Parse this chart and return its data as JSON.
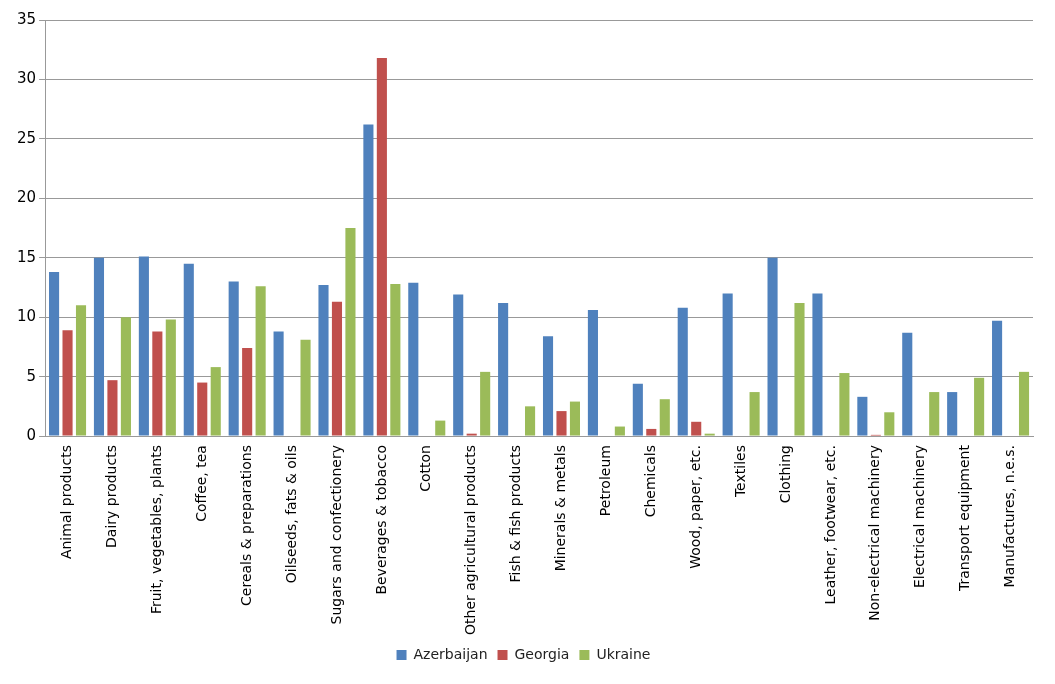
{
  "chart_data": {
    "type": "bar",
    "categories": [
      "Animal products",
      "Dairy products",
      "Fruit, vegetables, plants",
      "Coffee, tea",
      "Cereals & preparations",
      "Oilseeds, fats & oils",
      "Sugars and confectionery",
      "Beverages & tobacco",
      "Cotton",
      "Other agricultural products",
      "Fish & fish products",
      "Minerals & metals",
      "Petroleum",
      "Chemicals",
      "Wood, paper, etc.",
      "Textiles",
      "Clothing",
      "Leather, footwear, etc.",
      "Non-electrical machinery",
      "Electrical machinery",
      "Transport equipment",
      "Manufactures, n.e.s."
    ],
    "series": [
      {
        "name": "Azerbaijan",
        "color": "#4f81bd",
        "values": [
          13.8,
          15,
          15.1,
          14.5,
          13,
          8.8,
          12.7,
          26.2,
          12.9,
          11.9,
          11.2,
          8.4,
          10.6,
          4.4,
          10.8,
          12,
          15,
          12,
          3.3,
          8.7,
          3.7,
          9.7
        ]
      },
      {
        "name": "Georgia",
        "color": "#c0504d",
        "values": [
          8.9,
          4.7,
          8.8,
          4.5,
          7.4,
          null,
          11.3,
          31.8,
          null,
          0.2,
          null,
          2.1,
          null,
          0.6,
          1.2,
          null,
          null,
          null,
          0.1,
          null,
          null,
          null
        ]
      },
      {
        "name": "Ukraine",
        "color": "#9bbb59",
        "values": [
          11,
          10,
          9.8,
          5.8,
          12.6,
          8.1,
          17.5,
          12.8,
          1.3,
          5.4,
          2.5,
          2.9,
          0.8,
          3.1,
          0.2,
          3.7,
          11.2,
          5.3,
          2,
          3.7,
          4.9,
          5.4
        ]
      }
    ],
    "ylim": [
      0,
      35
    ],
    "yticks": [
      0,
      5,
      10,
      15,
      20,
      25,
      30,
      35
    ],
    "grid": "y",
    "legend": "bottom"
  }
}
